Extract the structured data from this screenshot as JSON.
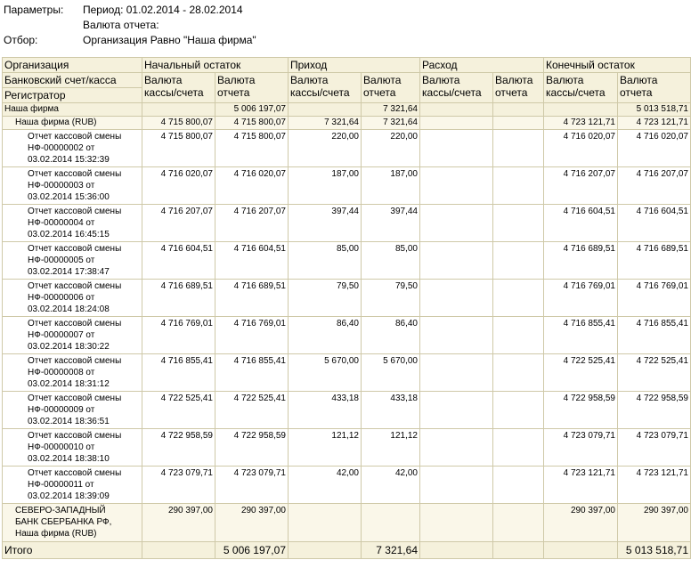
{
  "params": {
    "params_label": "Параметры:",
    "period": "Период: 01.02.2014 - 28.02.2014",
    "currency": "Валюта отчета:",
    "filter_label": "Отбор:",
    "filter": "Организация Равно \"Наша фирма\""
  },
  "header": {
    "org": "Организация",
    "start": "Начальный остаток",
    "income": "Приход",
    "expense": "Расход",
    "end": "Конечный остаток",
    "account": "Банковский счет/касса",
    "registrar": "Регистратор",
    "cash_currency": "Валюта кассы/счета",
    "report_currency": "Валюта отчета"
  },
  "org_row": {
    "name": "Наша фирма",
    "start_rep": "5 006 197,07",
    "inc_rep": "7 321,64",
    "end_rep": "5 013 518,71"
  },
  "cash_row": {
    "name": "Наша фирма (RUB)",
    "start_cash": "4 715 800,07",
    "start_rep": "4 715 800,07",
    "inc_cash": "7 321,64",
    "inc_rep": "7 321,64",
    "end_cash": "4 723 121,71",
    "end_rep": "4 723 121,71"
  },
  "docs": [
    {
      "l1": "Отчет кассовой смены",
      "l2": "НФ-00000002 от",
      "l3": "03.02.2014 15:32:39",
      "sc": "4 715 800,07",
      "sr": "4 715 800,07",
      "ic": "220,00",
      "ir": "220,00",
      "ec": "4 716 020,07",
      "er": "4 716 020,07"
    },
    {
      "l1": "Отчет кассовой смены",
      "l2": "НФ-00000003 от",
      "l3": "03.02.2014 15:36:00",
      "sc": "4 716 020,07",
      "sr": "4 716 020,07",
      "ic": "187,00",
      "ir": "187,00",
      "ec": "4 716 207,07",
      "er": "4 716 207,07"
    },
    {
      "l1": "Отчет кассовой смены",
      "l2": "НФ-00000004 от",
      "l3": "03.02.2014 16:45:15",
      "sc": "4 716 207,07",
      "sr": "4 716 207,07",
      "ic": "397,44",
      "ir": "397,44",
      "ec": "4 716 604,51",
      "er": "4 716 604,51"
    },
    {
      "l1": "Отчет кассовой смены",
      "l2": "НФ-00000005 от",
      "l3": "03.02.2014 17:38:47",
      "sc": "4 716 604,51",
      "sr": "4 716 604,51",
      "ic": "85,00",
      "ir": "85,00",
      "ec": "4 716 689,51",
      "er": "4 716 689,51"
    },
    {
      "l1": "Отчет кассовой смены",
      "l2": "НФ-00000006 от",
      "l3": "03.02.2014 18:24:08",
      "sc": "4 716 689,51",
      "sr": "4 716 689,51",
      "ic": "79,50",
      "ir": "79,50",
      "ec": "4 716 769,01",
      "er": "4 716 769,01"
    },
    {
      "l1": "Отчет кассовой смены",
      "l2": "НФ-00000007 от",
      "l3": "03.02.2014 18:30:22",
      "sc": "4 716 769,01",
      "sr": "4 716 769,01",
      "ic": "86,40",
      "ir": "86,40",
      "ec": "4 716 855,41",
      "er": "4 716 855,41"
    },
    {
      "l1": "Отчет кассовой смены",
      "l2": "НФ-00000008 от",
      "l3": "03.02.2014 18:31:12",
      "sc": "4 716 855,41",
      "sr": "4 716 855,41",
      "ic": "5 670,00",
      "ir": "5 670,00",
      "ec": "4 722 525,41",
      "er": "4 722 525,41"
    },
    {
      "l1": "Отчет кассовой смены",
      "l2": "НФ-00000009 от",
      "l3": "03.02.2014 18:36:51",
      "sc": "4 722 525,41",
      "sr": "4 722 525,41",
      "ic": "433,18",
      "ir": "433,18",
      "ec": "4 722 958,59",
      "er": "4 722 958,59"
    },
    {
      "l1": "Отчет кассовой смены",
      "l2": "НФ-00000010 от",
      "l3": "03.02.2014 18:38:10",
      "sc": "4 722 958,59",
      "sr": "4 722 958,59",
      "ic": "121,12",
      "ir": "121,12",
      "ec": "4 723 079,71",
      "er": "4 723 079,71"
    },
    {
      "l1": "Отчет кассовой смены",
      "l2": "НФ-00000011 от",
      "l3": "03.02.2014 18:39:09",
      "sc": "4 723 079,71",
      "sr": "4 723 079,71",
      "ic": "42,00",
      "ir": "42,00",
      "ec": "4 723 121,71",
      "er": "4 723 121,71"
    }
  ],
  "bank_row": {
    "l1": "СЕВЕРО-ЗАПАДНЫЙ",
    "l2": "БАНК СБЕРБАНКА РФ,",
    "l3": "Наша фирма (RUB)",
    "sc": "290 397,00",
    "sr": "290 397,00",
    "ec": "290 397,00",
    "er": "290 397,00"
  },
  "total_row": {
    "label": "Итого",
    "start_rep": "5 006 197,07",
    "inc_rep": "7 321,64",
    "end_rep": "5 013 518,71"
  }
}
